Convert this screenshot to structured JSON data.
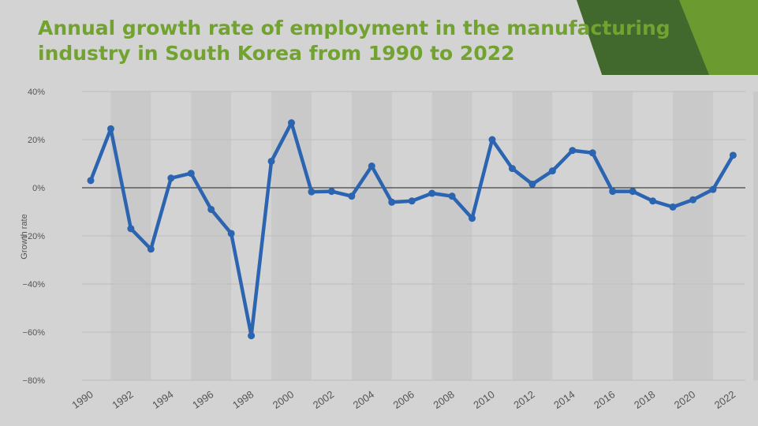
{
  "page": {
    "title": "Annual growth rate of employment in the manufacturing industry in South Korea from 1990 to 2022"
  },
  "colors": {
    "background": "#d3d3d3",
    "title": "#72a22f",
    "line": "#2b64b0",
    "band": "#c9c9c9",
    "zero_line": "#222222",
    "deco_dark": "#41692e",
    "deco_light": "#6b9a31"
  },
  "chart_data": {
    "type": "line",
    "title": "Annual growth rate of employment in the manufacturing industry in South Korea from 1990 to 2022",
    "xlabel": "",
    "ylabel": "Growth rate",
    "x": [
      1990,
      1991,
      1992,
      1993,
      1994,
      1995,
      1996,
      1997,
      1998,
      1999,
      2000,
      2001,
      2002,
      2003,
      2004,
      2005,
      2006,
      2007,
      2008,
      2009,
      2010,
      2011,
      2012,
      2013,
      2014,
      2015,
      2016,
      2017,
      2018,
      2019,
      2020,
      2021,
      2022
    ],
    "y": [
      3,
      24.5,
      -17,
      -25.5,
      4,
      6,
      -9,
      -19,
      -61.5,
      11,
      27,
      -1.7,
      -1.5,
      -3.5,
      9,
      -6,
      -5.5,
      -2.3,
      -3.5,
      -12.7,
      20,
      8,
      1.5,
      7,
      15.5,
      14.5,
      -1.5,
      -1.5,
      -5.5,
      -8,
      -5,
      -0.7,
      13.5
    ],
    "ylim": [
      -80,
      40
    ],
    "y_ticks": [
      40,
      20,
      0,
      -20,
      -40,
      -60,
      -80
    ],
    "y_tick_labels": [
      "40%",
      "20%",
      "0%",
      "−20%",
      "−40%",
      "−60%",
      "−80%"
    ],
    "x_ticks": [
      1990,
      1992,
      1994,
      1996,
      1998,
      2000,
      2002,
      2004,
      2006,
      2008,
      2010,
      2012,
      2014,
      2016,
      2018,
      2020,
      2022
    ],
    "x_tick_labels": [
      "1990",
      "1992",
      "1994",
      "1996",
      "1998",
      "2000",
      "2002",
      "2004",
      "2006",
      "2008",
      "2010",
      "2012",
      "2014",
      "2016",
      "2018",
      "2020",
      "2022"
    ],
    "grid": true,
    "legend": "none"
  }
}
